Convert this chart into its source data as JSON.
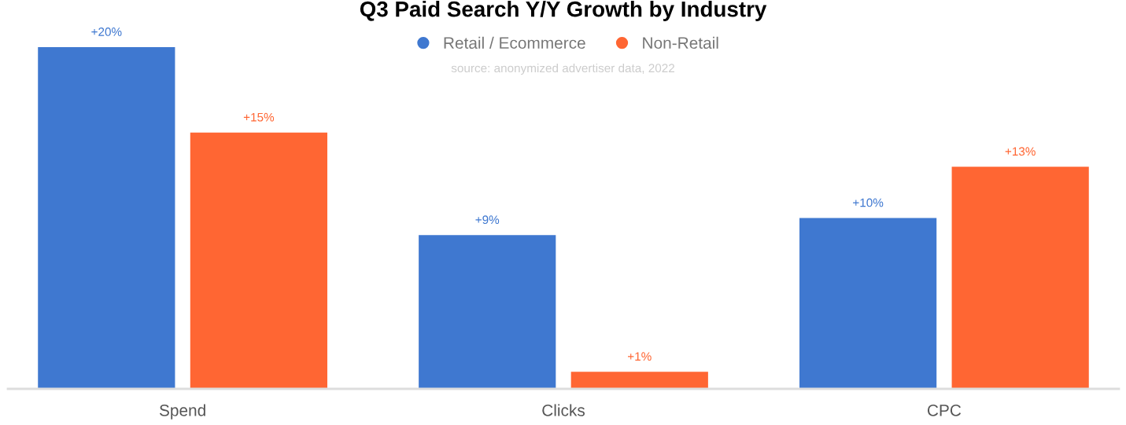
{
  "chart_data": {
    "type": "bar",
    "title": "Q3 Paid Search Y/Y Growth by Industry",
    "annotations": [
      "source: anonymized advertiser data, 2022"
    ],
    "categories": [
      "Spend",
      "Clicks",
      "CPC"
    ],
    "series": [
      {
        "name": "Retail / Ecommerce",
        "color": "#3f78d0",
        "values": [
          20,
          9,
          10
        ],
        "value_labels": [
          "+20%",
          "+9%",
          "+10%"
        ]
      },
      {
        "name": "Non-Retail",
        "color": "#ff6633",
        "values": [
          15,
          1,
          13
        ],
        "value_labels": [
          "+15%",
          "+1%",
          "+13%"
        ]
      }
    ],
    "legend": "top",
    "grid": false
  }
}
